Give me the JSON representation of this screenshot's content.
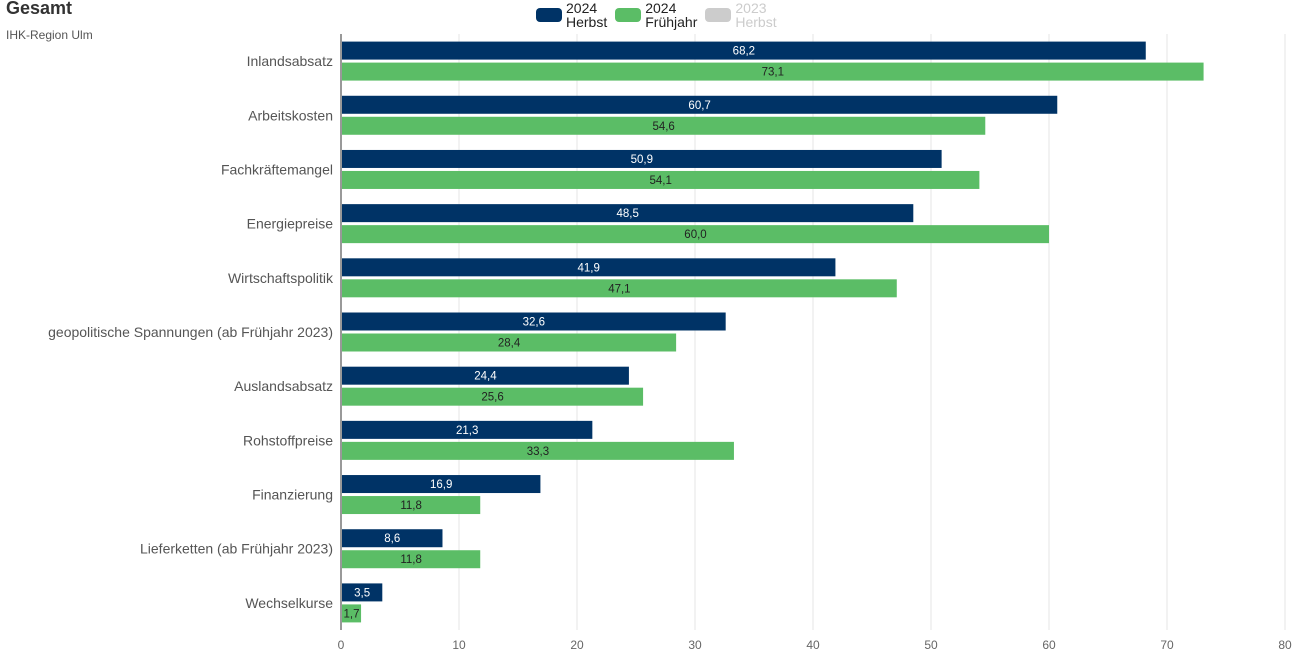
{
  "title": "Gesamt",
  "subtitle": "IHK-Region Ulm",
  "legend": [
    {
      "year": "2024",
      "season": "Herbst",
      "color": "#003366",
      "active": true
    },
    {
      "year": "2024",
      "season": "Frühjahr",
      "color": "#5bbd66",
      "active": true
    },
    {
      "year": "2023",
      "season": "Herbst",
      "color": "#cccccc",
      "active": false
    }
  ],
  "chart_data": {
    "type": "bar",
    "orientation": "horizontal",
    "categories": [
      "Inlandsabsatz",
      "Arbeitskosten",
      "Fachkräftemangel",
      "Energiepreise",
      "Wirtschaftspolitik",
      "geopolitische Spannungen (ab Frühjahr 2023)",
      "Auslandsabsatz",
      "Rohstoffpreise",
      "Finanzierung",
      "Lieferketten (ab Frühjahr 2023)",
      "Wechselkurse"
    ],
    "series": [
      {
        "name": "2024 Herbst",
        "color": "#003366",
        "label_color": "#ffffff",
        "values": [
          68.2,
          60.7,
          50.9,
          48.5,
          41.9,
          32.6,
          24.4,
          21.3,
          16.9,
          8.6,
          3.5
        ],
        "labels": [
          "68,2",
          "60,7",
          "50,9",
          "48,5",
          "41,9",
          "32,6",
          "24,4",
          "21,3",
          "16,9",
          "8,6",
          "3,5"
        ]
      },
      {
        "name": "2024 Frühjahr",
        "color": "#5bbd66",
        "label_color": "#222222",
        "values": [
          73.1,
          54.6,
          54.1,
          60.0,
          47.1,
          28.4,
          25.6,
          33.3,
          11.8,
          11.8,
          1.7
        ],
        "labels": [
          "73,1",
          "54,6",
          "54,1",
          "60,0",
          "47,1",
          "28,4",
          "25,6",
          "33,3",
          "11,8",
          "11,8",
          "1,7"
        ]
      }
    ],
    "xlim": [
      0,
      80
    ],
    "xticks": [
      0,
      10,
      20,
      30,
      40,
      50,
      60,
      70,
      80
    ],
    "grid": true,
    "legend_position": "top-center"
  }
}
